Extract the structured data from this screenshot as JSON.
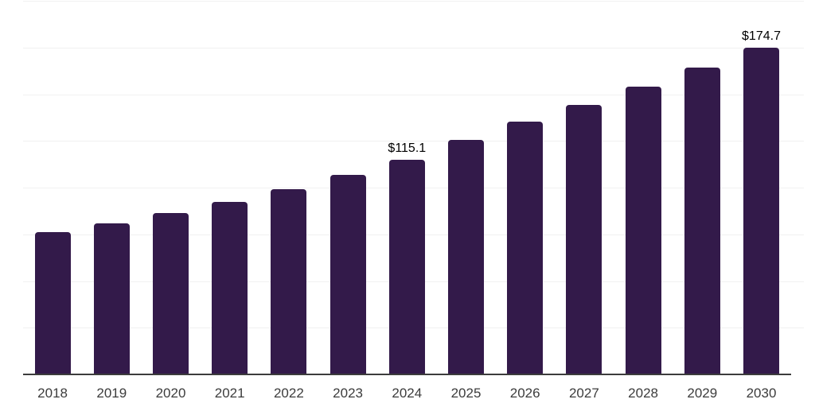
{
  "chart_data": {
    "type": "bar",
    "title": "",
    "xlabel": "",
    "ylabel": "",
    "categories": [
      "2018",
      "2019",
      "2020",
      "2021",
      "2022",
      "2023",
      "2024",
      "2025",
      "2026",
      "2027",
      "2028",
      "2029",
      "2030"
    ],
    "values": [
      76.3,
      80.7,
      86.3,
      92.5,
      99.0,
      106.8,
      115.1,
      125.7,
      135.2,
      144.4,
      154.0,
      164.3,
      174.7
    ],
    "value_labels": [
      "",
      "",
      "",
      "",
      "",
      "",
      "$115.1",
      "",
      "",
      "",
      "",
      "",
      "$174.7"
    ],
    "ylim": [
      0,
      200
    ],
    "ytick_step": 25,
    "y_axis_labels_visible": false,
    "grid": "horizontal",
    "legend": "none",
    "colors": {
      "bar": "#331A4A",
      "gridline": "#f1f1f1",
      "axis_line": "#3c3c3c",
      "tick_text": "#3c3c3c",
      "value_label_text": "#000000",
      "background": "#ffffff"
    }
  }
}
